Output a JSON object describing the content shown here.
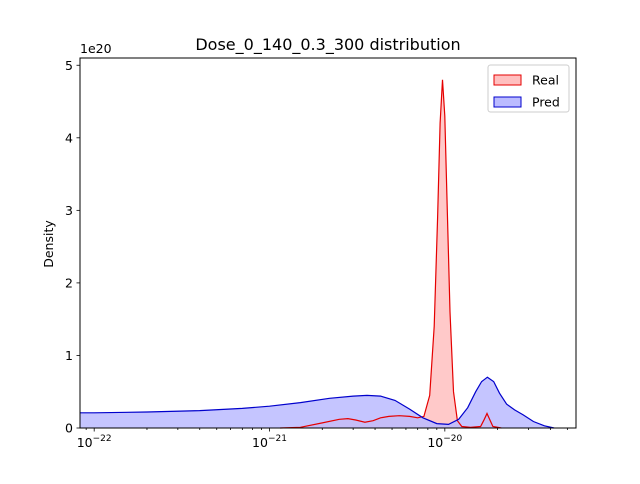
{
  "chart_data": {
    "type": "area",
    "title": "Dose_0_140_0.3_300 distribution",
    "xlabel": "",
    "ylabel": "Density",
    "y_scale_label": "1e20",
    "x_scale": "log",
    "xlim": [
      8.3e-23,
      5.6e-20
    ],
    "ylim": [
      0,
      5.1
    ],
    "x_major_ticks": [
      {
        "value": 1e-22,
        "base": "10",
        "exp": "−22"
      },
      {
        "value": 1e-21,
        "base": "10",
        "exp": "−21"
      },
      {
        "value": 1e-20,
        "base": "10",
        "exp": "−20"
      }
    ],
    "y_ticks": [
      {
        "value": 0,
        "label": "0"
      },
      {
        "value": 1,
        "label": "1"
      },
      {
        "value": 2,
        "label": "2"
      },
      {
        "value": 3,
        "label": "3"
      },
      {
        "value": 4,
        "label": "4"
      },
      {
        "value": 5,
        "label": "5"
      }
    ],
    "legend_position": "top-right",
    "series": [
      {
        "name": "Real",
        "color": "#e50000",
        "fill": "#ffbfbf",
        "points": [
          [
            1.15e-21,
            0.0
          ],
          [
            1.5e-21,
            0.01
          ],
          [
            2e-21,
            0.07
          ],
          [
            2.5e-21,
            0.12
          ],
          [
            2.8e-21,
            0.13
          ],
          [
            3.1e-21,
            0.11
          ],
          [
            3.5e-21,
            0.08
          ],
          [
            3.9e-21,
            0.1
          ],
          [
            4.3e-21,
            0.14
          ],
          [
            4.8e-21,
            0.16
          ],
          [
            5.5e-21,
            0.17
          ],
          [
            6.3e-21,
            0.16
          ],
          [
            7e-21,
            0.14
          ],
          [
            7.6e-21,
            0.16
          ],
          [
            8.2e-21,
            0.45
          ],
          [
            8.7e-21,
            1.4
          ],
          [
            9.1e-21,
            2.9
          ],
          [
            9.4e-21,
            4.2
          ],
          [
            9.7e-21,
            4.8
          ],
          [
            1e-20,
            4.3
          ],
          [
            1.03e-20,
            3.1
          ],
          [
            1.07e-20,
            1.6
          ],
          [
            1.12e-20,
            0.5
          ],
          [
            1.18e-20,
            0.1
          ],
          [
            1.25e-20,
            0.02
          ],
          [
            1.4e-20,
            0.01
          ],
          [
            1.6e-20,
            0.02
          ],
          [
            1.68e-20,
            0.12
          ],
          [
            1.74e-20,
            0.2
          ],
          [
            1.8e-20,
            0.12
          ],
          [
            1.88e-20,
            0.02
          ],
          [
            2.1e-20,
            0.0
          ]
        ]
      },
      {
        "name": "Pred",
        "color": "#0000cc",
        "fill": "#bbbbff",
        "points": [
          [
            8.3e-23,
            0.21
          ],
          [
            1e-22,
            0.21
          ],
          [
            2e-22,
            0.22
          ],
          [
            4e-22,
            0.24
          ],
          [
            7e-22,
            0.27
          ],
          [
            1e-21,
            0.3
          ],
          [
            1.5e-21,
            0.35
          ],
          [
            2.2e-21,
            0.41
          ],
          [
            3e-21,
            0.44
          ],
          [
            3.6e-21,
            0.45
          ],
          [
            4.3e-21,
            0.44
          ],
          [
            5.2e-21,
            0.38
          ],
          [
            6.3e-21,
            0.26
          ],
          [
            7.5e-21,
            0.14
          ],
          [
            9e-21,
            0.06
          ],
          [
            1.05e-20,
            0.05
          ],
          [
            1.2e-20,
            0.12
          ],
          [
            1.35e-20,
            0.28
          ],
          [
            1.5e-20,
            0.5
          ],
          [
            1.62e-20,
            0.64
          ],
          [
            1.75e-20,
            0.7
          ],
          [
            1.9e-20,
            0.64
          ],
          [
            2.05e-20,
            0.48
          ],
          [
            2.25e-20,
            0.33
          ],
          [
            2.5e-20,
            0.25
          ],
          [
            2.8e-20,
            0.18
          ],
          [
            3.2e-20,
            0.09
          ],
          [
            3.7e-20,
            0.03
          ],
          [
            4.2e-20,
            0.0
          ]
        ]
      }
    ]
  }
}
